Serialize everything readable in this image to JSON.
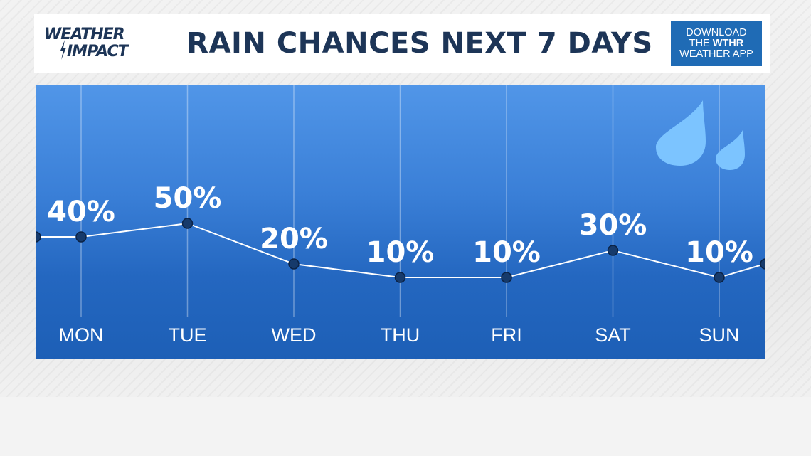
{
  "header": {
    "logo_line1": "WEATHER",
    "logo_line2": "IMPACT",
    "title": "RAIN CHANCES NEXT 7 DAYS",
    "promo_line1": "DOWNLOAD",
    "promo_line2_prefix": "THE ",
    "promo_line2_brand": "WTHR",
    "promo_line3": "WEATHER APP"
  },
  "colors": {
    "title": "#1d3557",
    "promo_bg": "#1f6bb5",
    "chart_top": "#5196e8",
    "chart_bottom": "#1d5fb6",
    "marker": "#163a6b",
    "drop": "#7cc4ff"
  },
  "icons": {
    "rain": "raindrops-icon"
  },
  "chart_data": {
    "type": "line",
    "title": "RAIN CHANCES NEXT 7 DAYS",
    "categories": [
      "MON",
      "TUE",
      "WED",
      "THU",
      "FRI",
      "SAT",
      "SUN"
    ],
    "values": [
      40,
      50,
      20,
      10,
      10,
      30,
      10
    ],
    "value_labels": [
      "40%",
      "50%",
      "20%",
      "10%",
      "10%",
      "30%",
      "10%"
    ],
    "unit": "%",
    "edge_values": {
      "before": 40,
      "after": 20
    },
    "ylim": [
      0,
      100
    ],
    "grid": "vertical",
    "legend": "none"
  }
}
